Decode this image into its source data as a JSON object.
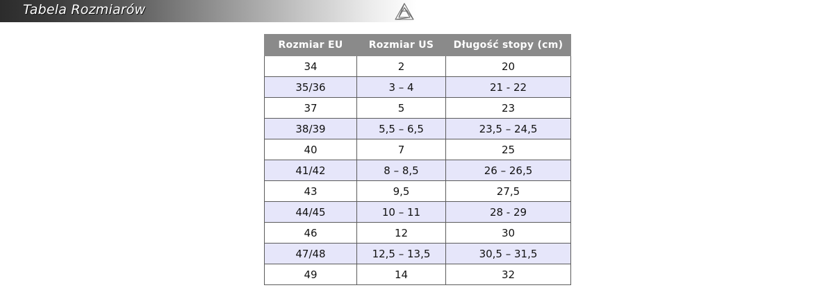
{
  "header": {
    "title": "Tabela Rozmiarów",
    "logo_icon": "recycle-triangle-icon"
  },
  "table": {
    "columns": [
      "Rozmiar EU",
      "Rozmiar US",
      "Długość stopy (cm)"
    ],
    "header_bg": "#8a8a8a",
    "alt_row_bg": "#e6e6fa",
    "rows": [
      [
        "34",
        "2",
        "20"
      ],
      [
        "35/36",
        "3 – 4",
        "21 - 22"
      ],
      [
        "37",
        "5",
        "23"
      ],
      [
        "38/39",
        "5,5 – 6,5",
        "23,5 – 24,5"
      ],
      [
        "40",
        "7",
        "25"
      ],
      [
        "41/42",
        "8 – 8,5",
        "26 – 26,5"
      ],
      [
        "43",
        "9,5",
        "27,5"
      ],
      [
        "44/45",
        "10 – 11",
        "28 - 29"
      ],
      [
        "46",
        "12",
        "30"
      ],
      [
        "47/48",
        "12,5 – 13,5",
        "30,5 – 31,5"
      ],
      [
        "49",
        "14",
        "32"
      ]
    ]
  }
}
